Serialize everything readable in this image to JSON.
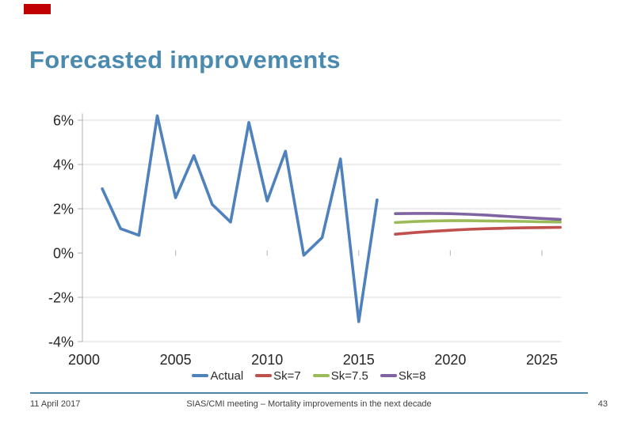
{
  "slide": {
    "title": "Forecasted improvements"
  },
  "theme": {
    "title_color": "#4B8AAF",
    "corner_mark_color": "#C00000",
    "footer_line_color": "#4E85A5",
    "axis_text_color": "#262626",
    "gridline_color": "#D9D9D9",
    "axis_line_color": "#BFBFBF"
  },
  "footer": {
    "date": "11 April 2017",
    "meeting": "SIAS/CMI meeting – Mortality improvements in the next decade",
    "page_number": "43"
  },
  "chart_data": {
    "type": "line",
    "title": "",
    "xlabel": "",
    "ylabel": "",
    "xlim": [
      2000,
      2026.2
    ],
    "ylim": [
      -4,
      6.3
    ],
    "grid": "horizontal gridlines at 2% steps, none at 0%",
    "legend_position": "bottom-center",
    "x_tick_years": [
      2000,
      2005,
      2010,
      2015,
      2020,
      2025
    ],
    "x_tick_labels": [
      "2000",
      "2005",
      "2010",
      "2015",
      "2020",
      "2025"
    ],
    "y_tick_values": [
      6,
      4,
      2,
      0,
      -2,
      -4
    ],
    "y_tick_labels": [
      "6%",
      "4%",
      "2%",
      "0%",
      "-2%",
      "-4%"
    ],
    "series": [
      {
        "name": "Actual",
        "color": "#4F81BD",
        "x": [
          2001,
          2002,
          2003,
          2004,
          2005,
          2006,
          2007,
          2008,
          2009,
          2010,
          2011,
          2012,
          2013,
          2014,
          2015,
          2016
        ],
        "values": [
          2.9,
          1.1,
          0.8,
          6.2,
          2.5,
          4.4,
          2.2,
          1.4,
          5.9,
          2.35,
          4.6,
          -0.1,
          0.7,
          4.25,
          -3.1,
          2.4
        ]
      },
      {
        "name": "Sk=7",
        "color": "#C0504D",
        "x": [
          2017,
          2018,
          2019,
          2020,
          2021,
          2022,
          2023,
          2024,
          2025,
          2026
        ],
        "values": [
          0.85,
          0.92,
          0.98,
          1.03,
          1.07,
          1.1,
          1.12,
          1.14,
          1.15,
          1.16
        ]
      },
      {
        "name": "Sk=7.5",
        "color": "#9BBB59",
        "x": [
          2017,
          2018,
          2019,
          2020,
          2021,
          2022,
          2023,
          2024,
          2025,
          2026
        ],
        "values": [
          1.38,
          1.42,
          1.45,
          1.46,
          1.46,
          1.45,
          1.44,
          1.43,
          1.41,
          1.4
        ]
      },
      {
        "name": "Sk=8",
        "color": "#8064A2",
        "x": [
          2017,
          2018,
          2019,
          2020,
          2021,
          2022,
          2023,
          2024,
          2025,
          2026
        ],
        "values": [
          1.78,
          1.79,
          1.79,
          1.78,
          1.75,
          1.71,
          1.66,
          1.61,
          1.56,
          1.52
        ]
      }
    ]
  }
}
